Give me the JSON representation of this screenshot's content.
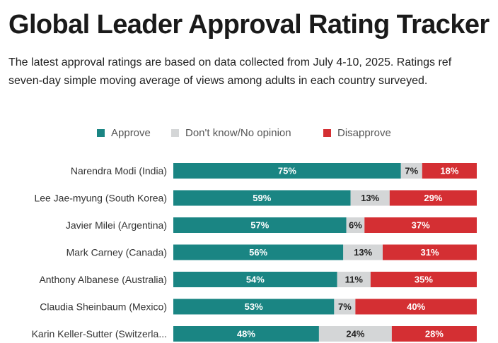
{
  "header": {
    "title": "Global Leader Approval Rating Tracker",
    "subtitle_line1": "The latest approval ratings are based on data collected from July 4-10, 2025. Ratings ref",
    "subtitle_line2": "seven-day simple moving average of views among adults in each country surveyed."
  },
  "legend": {
    "approve": "Approve",
    "dont_know": "Don't know/No opinion",
    "disapprove": "Disapprove"
  },
  "colors": {
    "approve": "#1a8583",
    "dont_know": "#d4d6d7",
    "disapprove": "#d42f33"
  },
  "chart_data": {
    "type": "bar",
    "orientation": "horizontal",
    "stacked": true,
    "normalized": true,
    "title": "Global Leader Approval Rating Tracker",
    "categories": [
      "Narendra Modi (India)",
      "Lee Jae-myung (South Korea)",
      "Javier Milei (Argentina)",
      "Mark Carney (Canada)",
      "Anthony Albanese (Australia)",
      "Claudia Sheinbaum (Mexico)",
      "Karin Keller-Sutter (Switzerla..."
    ],
    "series": [
      {
        "name": "Approve",
        "values": [
          75,
          59,
          57,
          56,
          54,
          53,
          48
        ]
      },
      {
        "name": "Don't know/No opinion",
        "values": [
          7,
          13,
          6,
          13,
          11,
          7,
          24
        ]
      },
      {
        "name": "Disapprove",
        "values": [
          18,
          29,
          37,
          31,
          35,
          40,
          28
        ]
      }
    ],
    "value_suffix": "%",
    "legend_position": "top"
  }
}
